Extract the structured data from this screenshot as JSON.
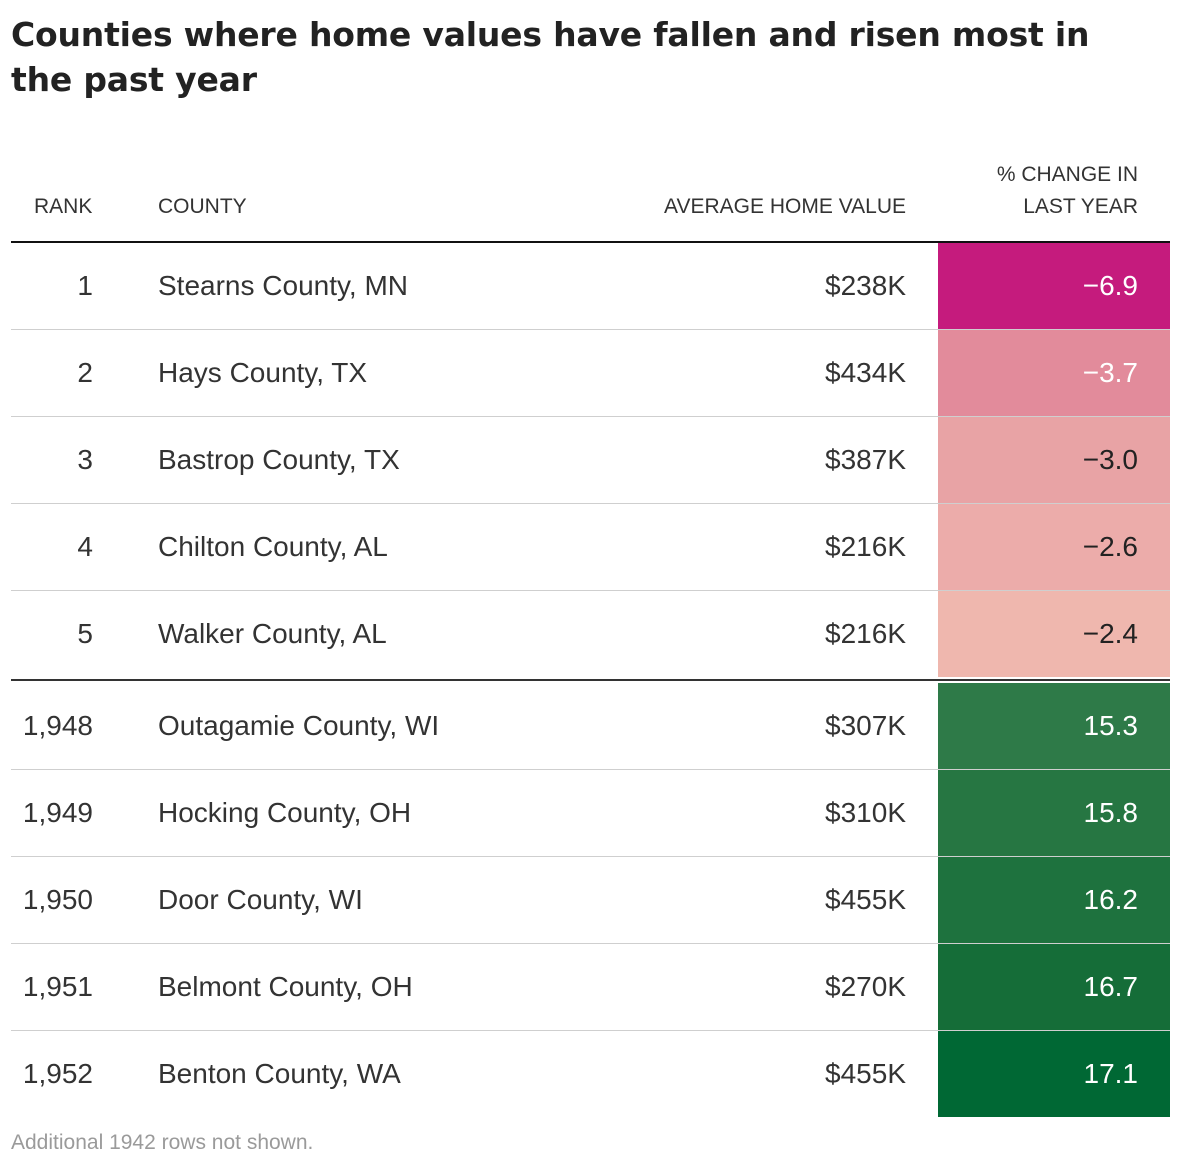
{
  "title": "Counties where home values have fallen and risen most in the past year",
  "headers": {
    "rank": "RANK",
    "county": "COUNTY",
    "value": "AVERAGE HOME VALUE",
    "change_line1": "% CHANGE IN",
    "change_line2": "LAST YEAR"
  },
  "rows_top": [
    {
      "rank": "1",
      "county": "Stearns County, MN",
      "value": "$238K",
      "change": "−6.9",
      "change_value": -6.9,
      "color": "#c51b7d",
      "text_color": "#ffffff"
    },
    {
      "rank": "2",
      "county": "Hays County, TX",
      "value": "$434K",
      "change": "−3.7",
      "change_value": -3.7,
      "color": "#e28b9b",
      "text_color": "#ffffff"
    },
    {
      "rank": "3",
      "county": "Bastrop County, TX",
      "value": "$387K",
      "change": "−3.0",
      "change_value": -3.0,
      "color": "#e8a3a5",
      "text_color": "#222222"
    },
    {
      "rank": "4",
      "county": "Chilton County, AL",
      "value": "$216K",
      "change": "−2.6",
      "change_value": -2.6,
      "color": "#ecacaa",
      "text_color": "#222222"
    },
    {
      "rank": "5",
      "county": "Walker County, AL",
      "value": "$216K",
      "change": "−2.4",
      "change_value": -2.4,
      "color": "#efb7ae",
      "text_color": "#222222"
    }
  ],
  "rows_bottom": [
    {
      "rank": "1,948",
      "county": "Outagamie County, WI",
      "value": "$307K",
      "change": "15.3",
      "change_value": 15.3,
      "color": "#2e7a48",
      "text_color": "#ffffff"
    },
    {
      "rank": "1,949",
      "county": "Hocking County, OH",
      "value": "$310K",
      "change": "15.8",
      "change_value": 15.8,
      "color": "#267642",
      "text_color": "#ffffff"
    },
    {
      "rank": "1,950",
      "county": "Door County, WI",
      "value": "$455K",
      "change": "16.2",
      "change_value": 16.2,
      "color": "#1e723e",
      "text_color": "#ffffff"
    },
    {
      "rank": "1,951",
      "county": "Belmont County, OH",
      "value": "$270K",
      "change": "16.7",
      "change_value": 16.7,
      "color": "#156d38",
      "text_color": "#ffffff"
    },
    {
      "rank": "1,952",
      "county": "Benton County, WA",
      "value": "$455K",
      "change": "17.1",
      "change_value": 17.1,
      "color": "#006834",
      "text_color": "#ffffff"
    }
  ],
  "note": "Additional 1942 rows not shown.",
  "chart_data": {
    "type": "table",
    "title": "Counties where home values have fallen and risen most in the past year",
    "columns": [
      "RANK",
      "COUNTY",
      "AVERAGE HOME VALUE",
      "% CHANGE IN LAST YEAR"
    ],
    "rows": [
      [
        "1",
        "Stearns County, MN",
        "$238K",
        -6.9
      ],
      [
        "2",
        "Hays County, TX",
        "$434K",
        -3.7
      ],
      [
        "3",
        "Bastrop County, TX",
        "$387K",
        -3.0
      ],
      [
        "4",
        "Chilton County, AL",
        "$216K",
        -2.6
      ],
      [
        "5",
        "Walker County, AL",
        "$216K",
        -2.4
      ],
      [
        "1,948",
        "Outagamie County, WI",
        "$307K",
        15.3
      ],
      [
        "1,949",
        "Hocking County, OH",
        "$310K",
        15.8
      ],
      [
        "1,950",
        "Door County, WI",
        "$455K",
        16.2
      ],
      [
        "1,951",
        "Belmont County, OH",
        "$270K",
        16.7
      ],
      [
        "1,952",
        "Benton County, WA",
        "$455K",
        17.1
      ]
    ]
  }
}
